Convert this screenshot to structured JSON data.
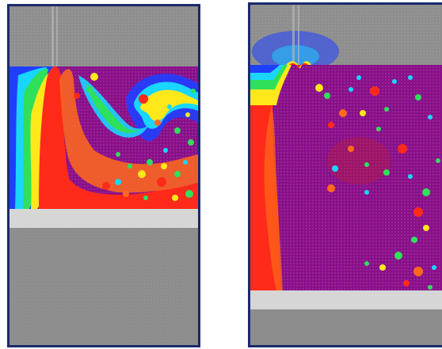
{
  "figure": {
    "panels": [
      {
        "id": "left",
        "description_colors": {
          "border": "#1a2a6c",
          "gray_region": "#8c8c8c",
          "purple_field": "#8a0f8a",
          "red": "#ff2a1a",
          "yellow": "#ffe81a",
          "green": "#2ee05a",
          "cyan": "#19d6ff",
          "blue": "#1f3fff",
          "light_bar": "#d6d6d6"
        }
      },
      {
        "id": "right",
        "description_colors": {
          "border": "#1a2a6c",
          "gray_region": "#8c8c8c",
          "purple_field": "#8a0f8a",
          "red": "#ff2a1a",
          "light_bar": "#d6d6d6"
        }
      }
    ]
  }
}
